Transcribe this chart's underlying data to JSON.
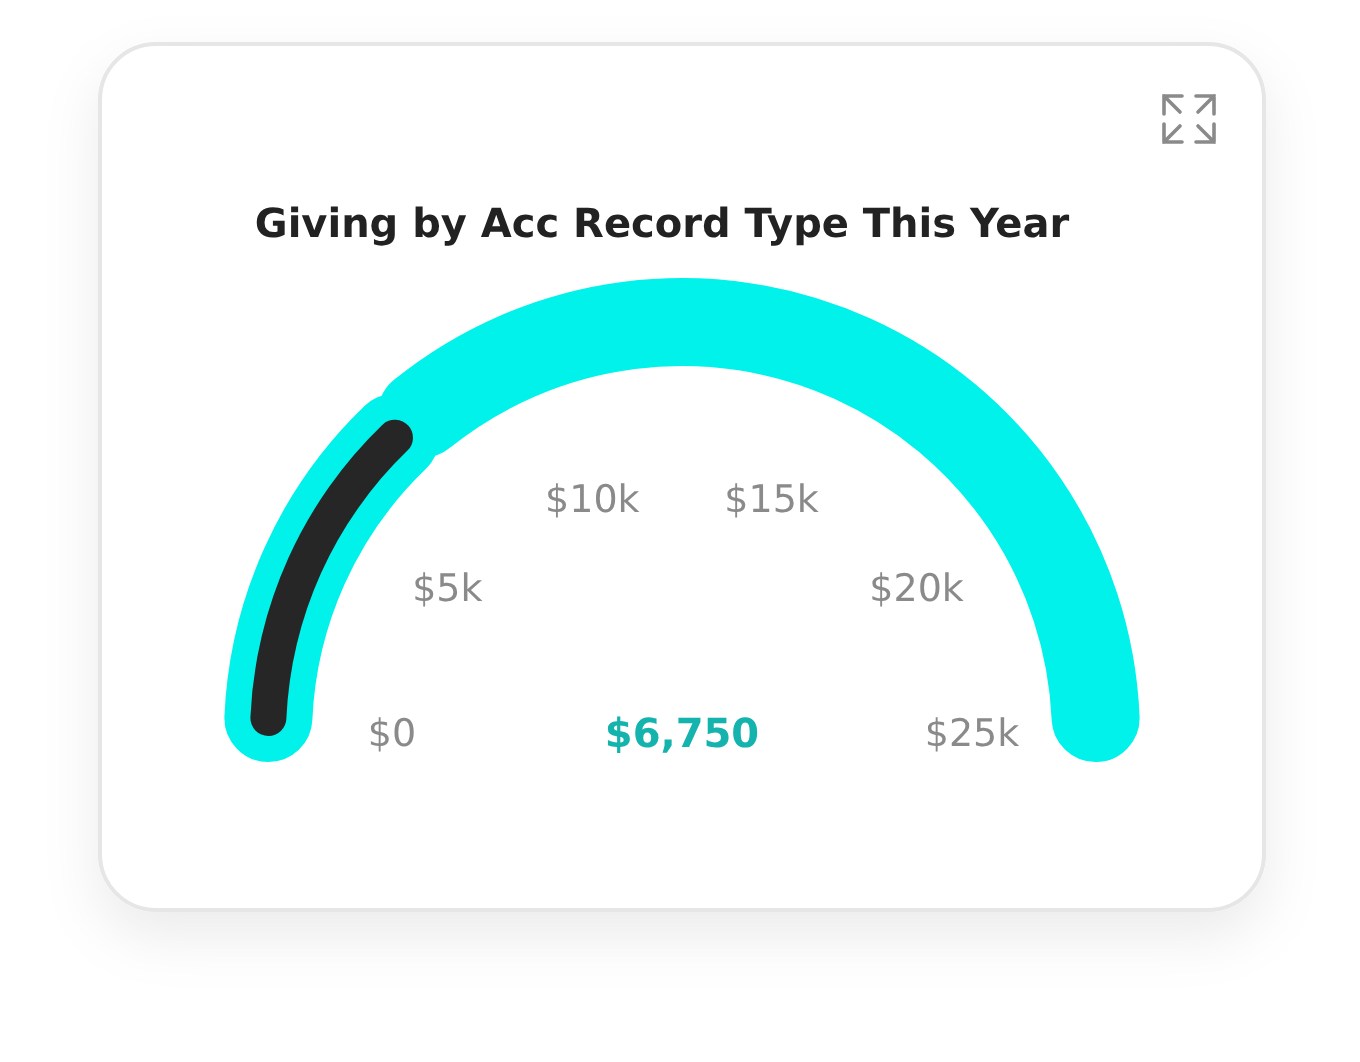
{
  "chart_data": {
    "type": "donut",
    "title": "Giving by Acc Record Type This Year",
    "categories": [
      null,
      null
    ],
    "values": [
      27,
      73
    ],
    "colors": [
      "#262626",
      "#00f2ea"
    ],
    "annotations": [
      "$0",
      "$5k",
      "$10k",
      "$15k",
      "$20k",
      "$25k",
      "$6,750"
    ]
  }
}
